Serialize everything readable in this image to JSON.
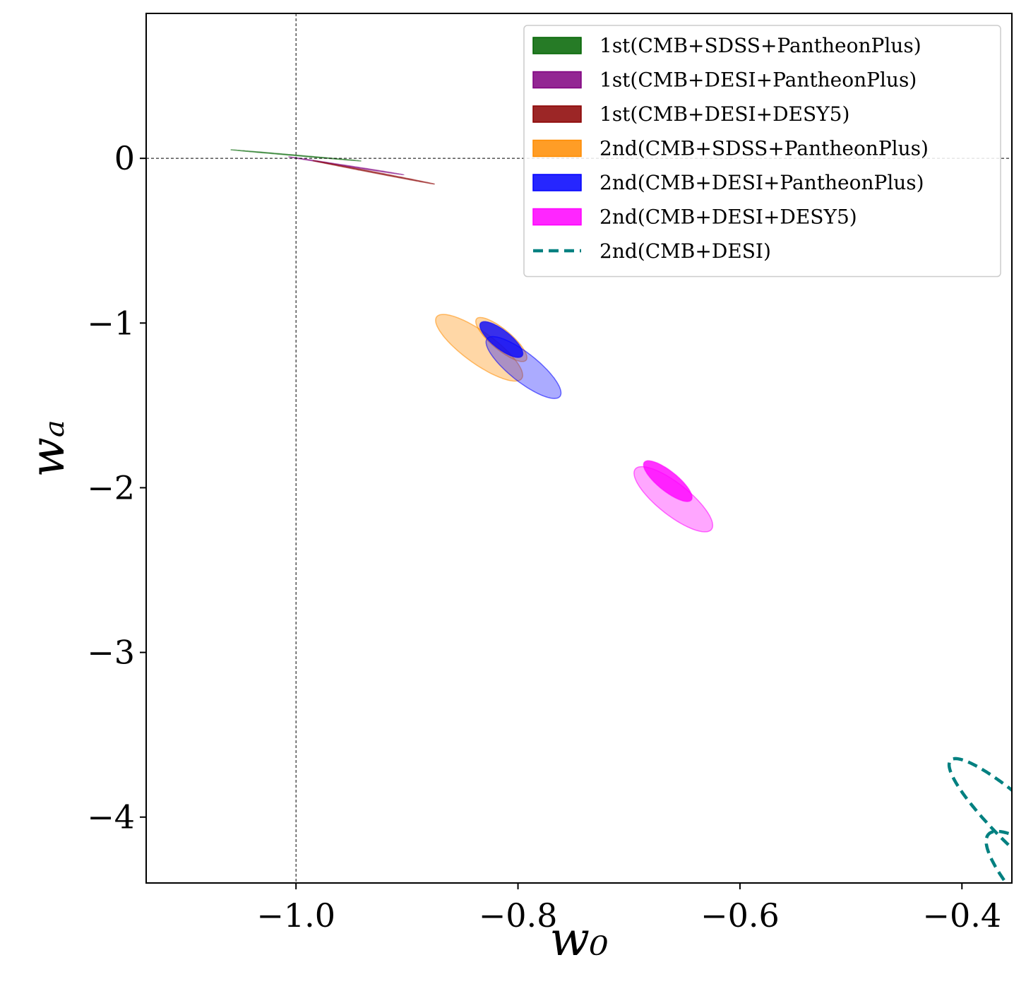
{
  "chart_data": {
    "type": "contour",
    "xlabel": "w₀",
    "ylabel": "wₐ",
    "xlim": [
      -1.135,
      -0.355
    ],
    "ylim": [
      -4.4,
      0.88
    ],
    "x_ticks": [
      {
        "value": -1.0,
        "label": "−1.0"
      },
      {
        "value": -0.8,
        "label": "−0.8"
      },
      {
        "value": -0.6,
        "label": "−0.6"
      },
      {
        "value": -0.4,
        "label": "−0.4"
      }
    ],
    "y_ticks": [
      {
        "value": 0,
        "label": "0"
      },
      {
        "value": -1,
        "label": "−1"
      },
      {
        "value": -2,
        "label": "−2"
      },
      {
        "value": -3,
        "label": "−3"
      },
      {
        "value": -4,
        "label": "−4"
      }
    ],
    "reference_lines": {
      "x": -1.0,
      "y": 0.0
    },
    "legend_position": "top-right",
    "series": [
      {
        "name": "1st(CMB+SDSS+PantheonPlus)",
        "color": "#006400",
        "style": "filled",
        "contours": [
          {
            "level": "95%",
            "center": [
              -1.0,
              0.018
            ],
            "semi_major": 0.068,
            "semi_minor": 0.0016,
            "slope": -0.58,
            "opacity": 0.65
          }
        ]
      },
      {
        "name": "1st(CMB+DESI+PantheonPlus)",
        "color": "#800080",
        "style": "filled",
        "contours": [
          {
            "level": "95%",
            "center": [
              -0.955,
              -0.045
            ],
            "semi_major": 0.075,
            "semi_minor": 0.0018,
            "slope": -1.05,
            "opacity": 0.6
          }
        ]
      },
      {
        "name": "1st(CMB+DESI+DESY5)",
        "color": "#8B0000",
        "style": "filled",
        "contours": [
          {
            "level": "95%",
            "center": [
              -0.93,
              -0.085
            ],
            "semi_major": 0.09,
            "semi_minor": 0.002,
            "slope": -1.3,
            "opacity": 0.55
          }
        ]
      },
      {
        "name": "2nd(CMB+SDSS+PantheonPlus)",
        "color": "#FF8C00",
        "style": "filled",
        "contours": [
          {
            "level": "68%",
            "center": [
              -0.815,
              -1.1
            ],
            "semi_major": 0.135,
            "semi_minor": 0.013,
            "slope": -7.0,
            "opacity": 0.35
          },
          {
            "level": "95%",
            "center": [
              -0.835,
              -1.15
            ],
            "semi_major": 0.205,
            "semi_minor": 0.022,
            "slope": -6.2,
            "opacity": 0.35
          }
        ]
      },
      {
        "name": "2nd(CMB+DESI+PantheonPlus)",
        "color": "#0000FF",
        "style": "filled",
        "contours": [
          {
            "level": "68%",
            "center": [
              -0.815,
              -1.1
            ],
            "semi_major": 0.11,
            "semi_minor": 0.012,
            "slope": -7.1,
            "opacity": 0.78
          },
          {
            "level": "95%",
            "center": [
              -0.795,
              -1.27
            ],
            "semi_major": 0.19,
            "semi_minor": 0.019,
            "slope": -6.7,
            "opacity": 0.33
          }
        ]
      },
      {
        "name": "2nd(CMB+DESI+DESY5)",
        "color": "#FF00FF",
        "style": "filled",
        "contours": [
          {
            "level": "68%",
            "center": [
              -0.665,
              -1.96
            ],
            "semi_major": 0.125,
            "semi_minor": 0.013,
            "slope": -7.0,
            "opacity": 0.8
          },
          {
            "level": "95%",
            "center": [
              -0.66,
              -2.07
            ],
            "semi_major": 0.2,
            "semi_minor": 0.021,
            "slope": -6.9,
            "opacity": 0.35
          }
        ]
      },
      {
        "name": "2nd(CMB+DESI)",
        "color": "#008080",
        "style": "dashed",
        "contours": [
          {
            "level": "68%",
            "center": [
              -0.34,
              -4.1
            ],
            "semi_major": 0.46,
            "semi_minor": 0.028,
            "slope": -6.9,
            "opacity": 1
          },
          {
            "level": "95%",
            "center": [
              -0.28,
              -4.7
            ],
            "semi_major": 0.62,
            "semi_minor": 0.042,
            "slope": -6.9,
            "opacity": 1
          }
        ]
      }
    ]
  }
}
